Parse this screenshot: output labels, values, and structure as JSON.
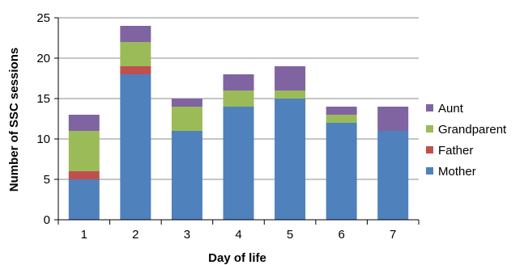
{
  "chart_data": {
    "type": "bar",
    "stacked": true,
    "categories": [
      "1",
      "2",
      "3",
      "4",
      "5",
      "6",
      "7"
    ],
    "series": [
      {
        "name": "Mother",
        "values": [
          5,
          18,
          11,
          14,
          15,
          12,
          11
        ],
        "color": "#4f81bd"
      },
      {
        "name": "Father",
        "values": [
          1,
          1,
          0,
          0,
          0,
          0,
          0
        ],
        "color": "#c0504d"
      },
      {
        "name": "Grandparent",
        "values": [
          5,
          3,
          3,
          2,
          1,
          1,
          0
        ],
        "color": "#9bbb59"
      },
      {
        "name": "Aunt",
        "values": [
          2,
          2,
          1,
          2,
          3,
          1,
          3
        ],
        "color": "#8064a2"
      }
    ],
    "xlabel": "Day of life",
    "ylabel": "Number of SSC sessions",
    "ylim": [
      0,
      25
    ],
    "yticks": [
      0,
      5,
      10,
      15,
      20,
      25
    ],
    "grid": true,
    "legend_position": "right"
  }
}
